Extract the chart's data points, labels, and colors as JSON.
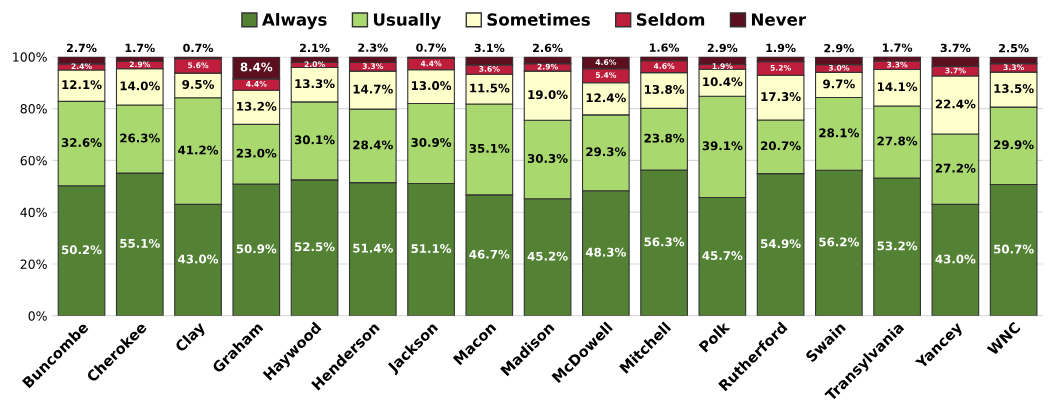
{
  "chart_data": {
    "type": "bar",
    "stacked": true,
    "legend": "top",
    "grid": "y",
    "categories": [
      "Buncombe",
      "Cherokee",
      "Clay",
      "Graham",
      "Haywood",
      "Henderson",
      "Jackson",
      "Macon",
      "Madison",
      "McDowell",
      "Mitchell",
      "Polk",
      "Rutherford",
      "Swain",
      "Transylvania",
      "Yancey",
      "WNC"
    ],
    "ylim": [
      0,
      100
    ],
    "yticks": [
      {
        "value": 0,
        "label": "0%"
      },
      {
        "value": 20,
        "label": "20%"
      },
      {
        "value": 40,
        "label": "40%"
      },
      {
        "value": 60,
        "label": "60%"
      },
      {
        "value": 80,
        "label": "80%"
      },
      {
        "value": 100,
        "label": "100%"
      }
    ],
    "series": [
      {
        "name": "Always",
        "color": "#548235",
        "values": [
          50.2,
          55.1,
          43.0,
          50.9,
          52.5,
          51.4,
          51.1,
          46.7,
          45.2,
          48.3,
          56.3,
          45.7,
          54.9,
          56.2,
          53.2,
          43.0,
          50.7
        ],
        "value_labels": [
          "50.2%",
          "55.1%",
          "43.0%",
          "50.9%",
          "52.5%",
          "51.4%",
          "51.1%",
          "46.7%",
          "45.2%",
          "48.3%",
          "56.3%",
          "45.7%",
          "54.9%",
          "56.2%",
          "53.2%",
          "43.0%",
          "50.7%"
        ]
      },
      {
        "name": "Usually",
        "color": "#a9d86e",
        "values": [
          32.6,
          26.3,
          41.2,
          23.0,
          30.1,
          28.4,
          30.9,
          35.1,
          30.3,
          29.3,
          23.8,
          39.1,
          20.7,
          28.1,
          27.8,
          27.2,
          29.9
        ],
        "value_labels": [
          "32.6%",
          "26.3%",
          "41.2%",
          "23.0%",
          "30.1%",
          "28.4%",
          "30.9%",
          "35.1%",
          "30.3%",
          "29.3%",
          "23.8%",
          "39.1%",
          "20.7%",
          "28.1%",
          "27.8%",
          "27.2%",
          "29.9%"
        ]
      },
      {
        "name": "Sometimes",
        "color": "#ffffcc",
        "values": [
          12.1,
          14.0,
          9.5,
          13.2,
          13.3,
          14.7,
          13.0,
          11.5,
          19.0,
          12.4,
          13.8,
          10.4,
          17.3,
          9.7,
          14.1,
          22.4,
          13.5
        ],
        "value_labels": [
          "12.1%",
          "14.0%",
          "9.5%",
          "13.2%",
          "13.3%",
          "14.7%",
          "13.0%",
          "11.5%",
          "19.0%",
          "12.4%",
          "13.8%",
          "10.4%",
          "17.3%",
          "9.7%",
          "14.1%",
          "22.4%",
          "13.5%"
        ]
      },
      {
        "name": "Seldom",
        "color": "#be1e3c",
        "values": [
          2.4,
          2.9,
          5.6,
          4.4,
          2.0,
          3.3,
          4.4,
          3.6,
          2.9,
          5.4,
          4.6,
          1.9,
          5.2,
          3.0,
          3.3,
          3.7,
          3.3
        ],
        "value_labels": [
          "2.4%",
          "2.9%",
          "5.6%",
          "4.4%",
          "2.0%",
          "3.3%",
          "4.4%",
          "3.6%",
          "2.9%",
          "5.4%",
          "4.6%",
          "1.9%",
          "5.2%",
          "3.0%",
          "3.3%",
          "3.7%",
          "3.3%"
        ]
      },
      {
        "name": "Never",
        "color": "#5c0f1e",
        "values": [
          2.7,
          1.7,
          0.7,
          8.4,
          2.1,
          2.3,
          0.7,
          3.1,
          2.6,
          4.6,
          1.6,
          2.9,
          1.9,
          2.9,
          1.7,
          3.7,
          2.5
        ],
        "value_labels": [
          "2.7%",
          "1.7%",
          "0.7%",
          "8.4%",
          "2.1%",
          "2.3%",
          "0.7%",
          "3.1%",
          "2.6%",
          "4.6%",
          "1.6%",
          "2.9%",
          "1.9%",
          "2.9%",
          "1.7%",
          "3.7%",
          "2.5%"
        ]
      }
    ]
  }
}
